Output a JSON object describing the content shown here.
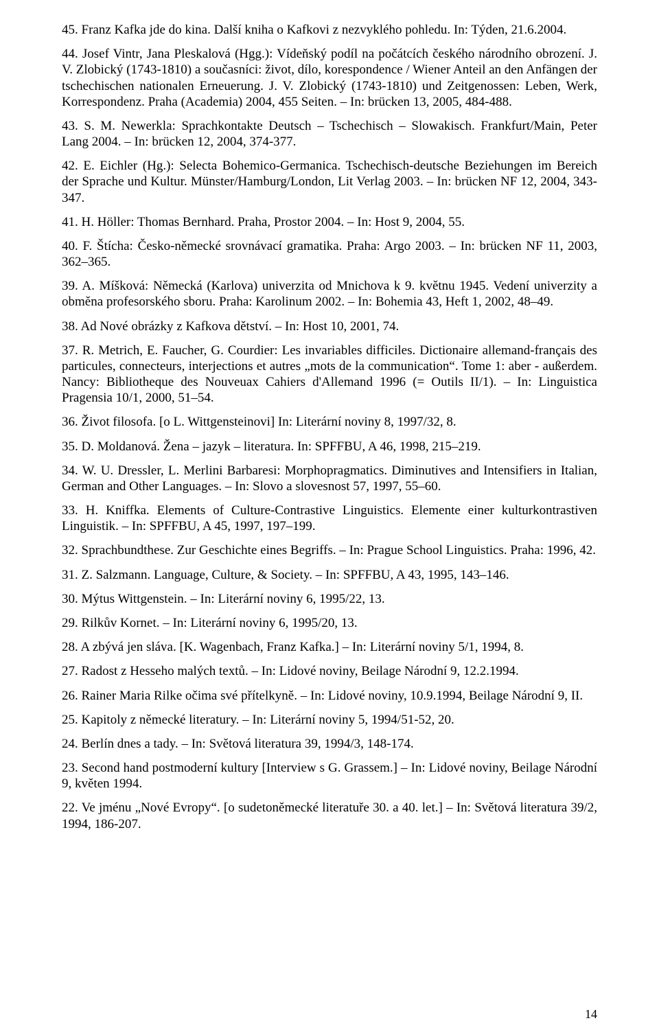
{
  "page_number": "14",
  "text_color": "#000000",
  "background_color": "#ffffff",
  "font_family": "Times New Roman",
  "base_font_size_pt": 14,
  "entries": [
    {
      "text": "45. Franz Kafka jde do kina. Další kniha o Kafkovi z nezvyklého pohledu. In: Týden, 21.6.2004."
    },
    {
      "text": "44. Josef Vintr, Jana Pleskalová (Hgg.): Vídeňský podíl na počátcích českého národního obrození. J. V. Zlobický (1743-1810) a současníci: život, dílo, korespondence / Wiener Anteil an den Anfängen der tschechischen nationalen Erneuerung. J. V. Zlobický (1743-1810) und Zeitgenossen: Leben, Werk, Korrespondenz. Praha (Academia) 2004, 455 Seiten. – In: brücken 13, 2005, 484-488."
    },
    {
      "text": "43. S. M. Newerkla: Sprachkontakte Deutsch – Tschechisch – Slowakisch. Frankfurt/Main, Peter Lang 2004. – In: brücken 12, 2004, 374-377."
    },
    {
      "text": "42. E. Eichler (Hg.): Selecta Bohemico-Germanica. Tschechisch-deutsche Beziehungen im Bereich der Sprache und Kultur. Münster/Hamburg/London, Lit Verlag 2003. – In: brücken NF 12, 2004, 343-347."
    },
    {
      "text": "41. H. Höller: Thomas Bernhard. Praha, Prostor 2004. – In: Host 9, 2004, 55."
    },
    {
      "text": "40. F. Štícha: Česko-německé srovnávací gramatika. Praha: Argo 2003. – In: brücken NF 11, 2003, 362–365."
    },
    {
      "text": "39. A. Míšková: Německá (Karlova) univerzita od Mnichova k 9. květnu 1945. Vedení univerzity a obměna profesorského sboru. Praha: Karolinum 2002. – In: Bohemia 43, Heft 1, 2002, 48–49."
    },
    {
      "text": "38. Ad Nové obrázky z Kafkova dětství. – In: Host 10, 2001, 74."
    },
    {
      "text": "37. R. Metrich, E. Faucher, G. Courdier: Les invariables difficiles. Dictionaire allemand-français des particules, connecteurs, interjections et autres „mots de la communication“. Tome 1: aber - außerdem. Nancy: Bibliotheque des Nouveuax Cahiers d'Allemand 1996 (= Outils II/1). – In: Linguistica Pragensia 10/1, 2000, 51–54."
    },
    {
      "text": "36. Život filosofa. [o L. Wittgensteinovi] In: Literární noviny 8, 1997/32, 8."
    },
    {
      "text": "35. D. Moldanová. Žena – jazyk – literatura. In: SPFFBU, A 46, 1998, 215–219."
    },
    {
      "text": "34. W. U. Dressler, L. Merlini Barbaresi: Morphopragmatics. Diminutives and Intensifiers in Italian, German and Other Languages. – In: Slovo a slovesnost 57, 1997, 55–60."
    },
    {
      "text": "33. H. Kniffka. Elements of Culture-Contrastive Linguistics. Elemente einer kulturkontrastiven Linguistik. – In: SPFFBU, A 45, 1997, 197–199."
    },
    {
      "text": "32. Sprachbundthese. Zur Geschichte eines Begriffs. – In: Prague School Linguistics. Praha: 1996, 42."
    },
    {
      "text": "31. Z. Salzmann. Language, Culture, & Society. – In: SPFFBU, A 43, 1995, 143–146."
    },
    {
      "text": "30. Mýtus Wittgenstein. – In: Literární noviny 6, 1995/22, 13."
    },
    {
      "text": "29. Rilkův Kornet. – In: Literární noviny 6, 1995/20, 13."
    },
    {
      "text": "28. A zbývá jen sláva. [K. Wagenbach, Franz Kafka.] – In: Literární noviny 5/1, 1994, 8."
    },
    {
      "text": "27. Radost z Hesseho malých textů. – In: Lidové noviny, Beilage Národní 9, 12.2.1994."
    },
    {
      "text": "26. Rainer Maria Rilke očima své přítelkyně. – In: Lidové noviny, 10.9.1994, Beilage Národní 9, II."
    },
    {
      "text": "25. Kapitoly z německé literatury. – In: Literární noviny 5, 1994/51-52, 20."
    },
    {
      "text": "24. Berlín dnes a tady. – In: Světová literatura 39, 1994/3, 148-174."
    },
    {
      "text": "23. Second hand postmoderní kultury [Interview s G. Grassem.] – In: Lidové noviny, Beilage Národní 9, květen 1994."
    },
    {
      "text": "22. Ve jménu „Nové Evropy“. [o sudetoněmecké literatuře 30. a 40. let.] – In: Světová literatura 39/2, 1994, 186-207."
    }
  ]
}
